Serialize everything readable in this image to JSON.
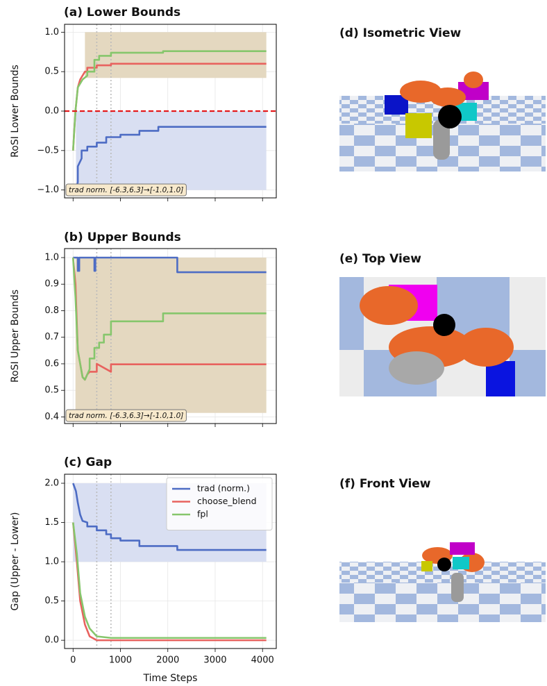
{
  "chart_data": [
    {
      "type": "line",
      "title": "(a) Lower Bounds",
      "y_label": "RoSI Lower Bounds",
      "xlim": [
        -180,
        4290
      ],
      "ylim": [
        -1.1,
        1.1
      ],
      "xticks": [
        0,
        1000,
        2000,
        3000,
        4000
      ],
      "yticks": [
        {
          "value": -1.0,
          "label": "−1.0"
        },
        {
          "value": -0.5,
          "label": "−0.5"
        },
        {
          "value": 0.0,
          "label": "0.0"
        },
        0.5,
        {
          "value": 1.0,
          "label": "1.0"
        }
      ],
      "grid": true,
      "annotation": "trad norm. [-6.3,6.3]→[-1.0,1.0]",
      "vlines": [
        500,
        800
      ],
      "hline": {
        "value": 0,
        "color": "#e41a1c"
      },
      "bands": [
        {
          "x": [
            60,
            4080
          ],
          "lower": -1.0,
          "upper": 0.0,
          "color": "#d9dff2"
        },
        {
          "x": [
            250,
            4080
          ],
          "lower": 0.42,
          "upper": 1.0,
          "color": "#e4d8c0"
        }
      ],
      "series": [
        {
          "color": "#4d6cc4",
          "x": [
            60,
            100,
            100,
            180,
            180,
            300,
            300,
            500,
            500,
            700,
            700,
            1000,
            1000,
            1400,
            1400,
            1800,
            1800,
            4080
          ],
          "values": [
            -1.0,
            -0.9,
            -0.7,
            -0.6,
            -0.5,
            -0.5,
            -0.45,
            -0.45,
            -0.4,
            -0.4,
            -0.33,
            -0.33,
            -0.3,
            -0.3,
            -0.25,
            -0.25,
            -0.2,
            -0.2
          ]
        },
        {
          "color": "#e8625e",
          "x": [
            0,
            50,
            100,
            150,
            250,
            300,
            300,
            500,
            500,
            800,
            800,
            4080
          ],
          "values": [
            -0.5,
            0.0,
            0.3,
            0.4,
            0.5,
            0.5,
            0.55,
            0.55,
            0.58,
            0.58,
            0.6,
            0.6
          ]
        },
        {
          "color": "#86c66c",
          "x": [
            0,
            50,
            100,
            200,
            300,
            300,
            450,
            450,
            550,
            550,
            800,
            800,
            1900,
            1900,
            4080
          ],
          "values": [
            -0.5,
            0.0,
            0.3,
            0.4,
            0.45,
            0.5,
            0.5,
            0.65,
            0.65,
            0.7,
            0.7,
            0.74,
            0.74,
            0.76,
            0.76
          ]
        }
      ]
    },
    {
      "type": "line",
      "title": "(b) Upper Bounds",
      "y_label": "RoSI Upper Bounds",
      "xlim": [
        -180,
        4290
      ],
      "ylim": [
        0.375,
        1.034
      ],
      "xticks": [
        0,
        1000,
        2000,
        3000,
        4000
      ],
      "yticks": [
        0.4,
        0.5,
        0.6,
        0.7,
        0.8,
        0.9,
        {
          "value": 1.0,
          "label": "1.0"
        }
      ],
      "grid": true,
      "annotation": "trad norm. [-6.3,6.3]→[-1.0,1.0]",
      "vlines": [
        500,
        800
      ],
      "bands": [
        {
          "x": [
            50,
            4080
          ],
          "lower": 0.415,
          "upper": 1.0,
          "color": "#e4d8c0"
        }
      ],
      "series": [
        {
          "color": "#4d6cc4",
          "x": [
            0,
            100,
            100,
            130,
            130,
            450,
            450,
            470,
            470,
            2200,
            2200,
            4080
          ],
          "values": [
            1.0,
            1.0,
            0.95,
            0.95,
            1.0,
            1.0,
            0.95,
            0.95,
            1.0,
            1.0,
            0.945,
            0.945
          ]
        },
        {
          "color": "#e8625e",
          "x": [
            0,
            50,
            100,
            150,
            200,
            250,
            300,
            350,
            400,
            500,
            500,
            800,
            800,
            4080
          ],
          "values": [
            1.0,
            0.9,
            0.65,
            0.6,
            0.55,
            0.54,
            0.56,
            0.57,
            0.57,
            0.57,
            0.6,
            0.57,
            0.598,
            0.598
          ]
        },
        {
          "color": "#86c66c",
          "x": [
            0,
            50,
            100,
            200,
            250,
            350,
            350,
            450,
            450,
            550,
            550,
            650,
            650,
            800,
            800,
            1900,
            1900,
            4080
          ],
          "values": [
            1.0,
            0.85,
            0.65,
            0.55,
            0.54,
            0.58,
            0.62,
            0.62,
            0.66,
            0.66,
            0.68,
            0.68,
            0.71,
            0.71,
            0.76,
            0.76,
            0.79,
            0.79
          ]
        }
      ]
    },
    {
      "type": "line",
      "title": "(c) Gap",
      "y_label": "Gap (Upper - Lower)",
      "x_label": "Time Steps",
      "xlim": [
        -180,
        4290
      ],
      "ylim": [
        -0.105,
        2.115
      ],
      "xticks": [
        0,
        1000,
        2000,
        3000,
        4000
      ],
      "yticks": [
        {
          "value": 0.0,
          "label": "0.0"
        },
        0.5,
        {
          "value": 1.0,
          "label": "1.0"
        },
        1.5,
        {
          "value": 2.0,
          "label": "2.0"
        }
      ],
      "grid": true,
      "legend": "upper right",
      "vlines": [
        500,
        800
      ],
      "bands": [
        {
          "x": [
            0,
            4080
          ],
          "lower": 1.0,
          "upper": 2.0,
          "color": "#d9dff2"
        }
      ],
      "series": [
        {
          "name": "trad (norm.)",
          "color": "#4d6cc4",
          "x": [
            0,
            60,
            100,
            150,
            200,
            300,
            300,
            500,
            500,
            700,
            700,
            800,
            800,
            1000,
            1000,
            1400,
            1400,
            2200,
            2200,
            4080
          ],
          "values": [
            2.0,
            1.9,
            1.75,
            1.6,
            1.52,
            1.5,
            1.45,
            1.45,
            1.4,
            1.4,
            1.35,
            1.35,
            1.3,
            1.3,
            1.27,
            1.27,
            1.2,
            1.2,
            1.15,
            1.15
          ]
        },
        {
          "name": "choose_blend",
          "color": "#e8625e",
          "x": [
            0,
            80,
            150,
            250,
            350,
            500,
            4080
          ],
          "values": [
            1.5,
            1.0,
            0.5,
            0.2,
            0.05,
            0.0,
            0.0
          ]
        },
        {
          "name": "fpl",
          "color": "#86c66c",
          "x": [
            0,
            80,
            150,
            250,
            350,
            500,
            800,
            4080
          ],
          "values": [
            1.5,
            1.1,
            0.6,
            0.3,
            0.15,
            0.05,
            0.03,
            0.03
          ]
        }
      ]
    }
  ],
  "views": [
    {
      "title": "(d) Isometric View"
    },
    {
      "title": "(e) Top View"
    },
    {
      "title": "(f) Front View"
    }
  ]
}
